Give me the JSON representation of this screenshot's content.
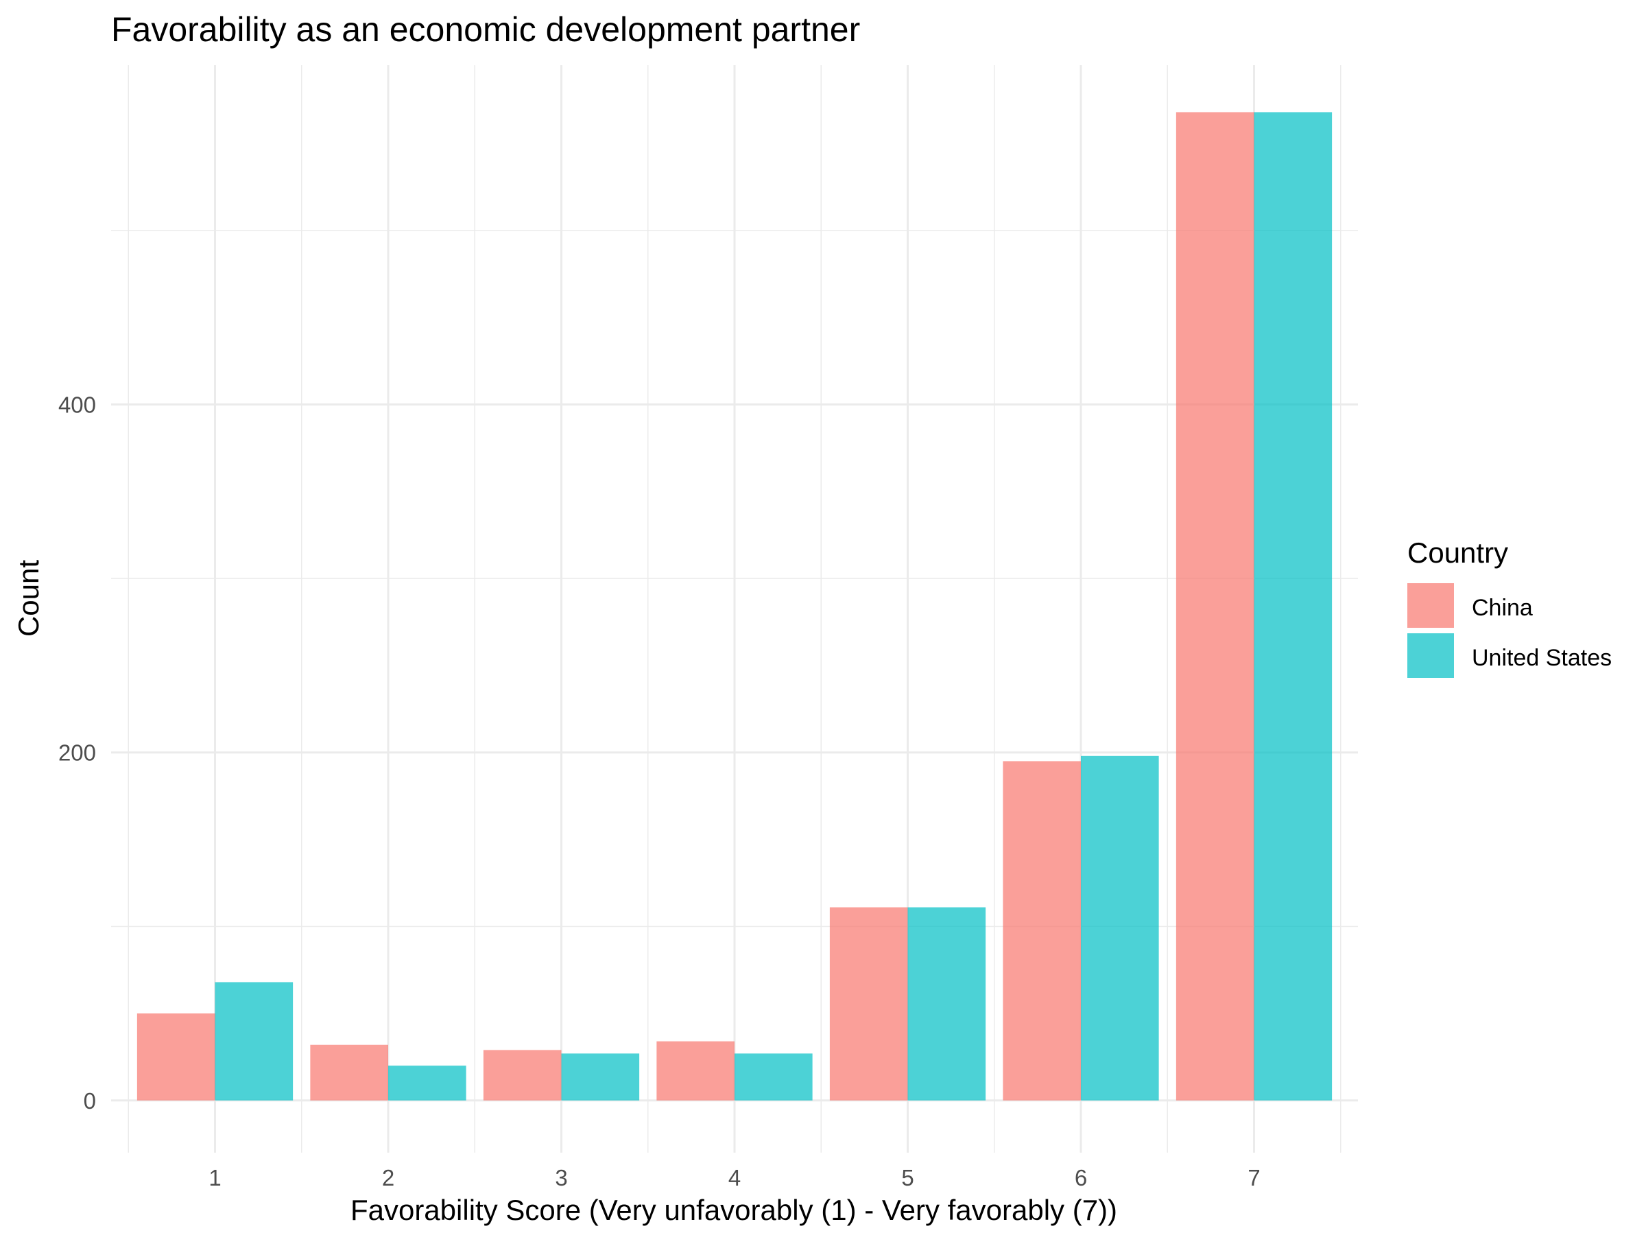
{
  "chart_data": {
    "type": "bar",
    "title": "Favorability as an economic development partner",
    "xlabel": "Favorability Score (Very unfavorably (1) - Very favorably (7))",
    "ylabel": "Count",
    "categories": [
      "1",
      "2",
      "3",
      "4",
      "5",
      "6",
      "7"
    ],
    "series": [
      {
        "name": "China",
        "color": "#F8766D",
        "values": [
          50,
          32,
          29,
          34,
          111,
          195,
          568
        ]
      },
      {
        "name": "United States",
        "color": "#00BFC4",
        "values": [
          68,
          20,
          27,
          27,
          111,
          198,
          568
        ]
      }
    ],
    "ylim": [
      -30,
      595
    ],
    "yticks": [
      0,
      200,
      400
    ],
    "grid": true,
    "legend": {
      "title": "Country",
      "position": "right"
    }
  }
}
